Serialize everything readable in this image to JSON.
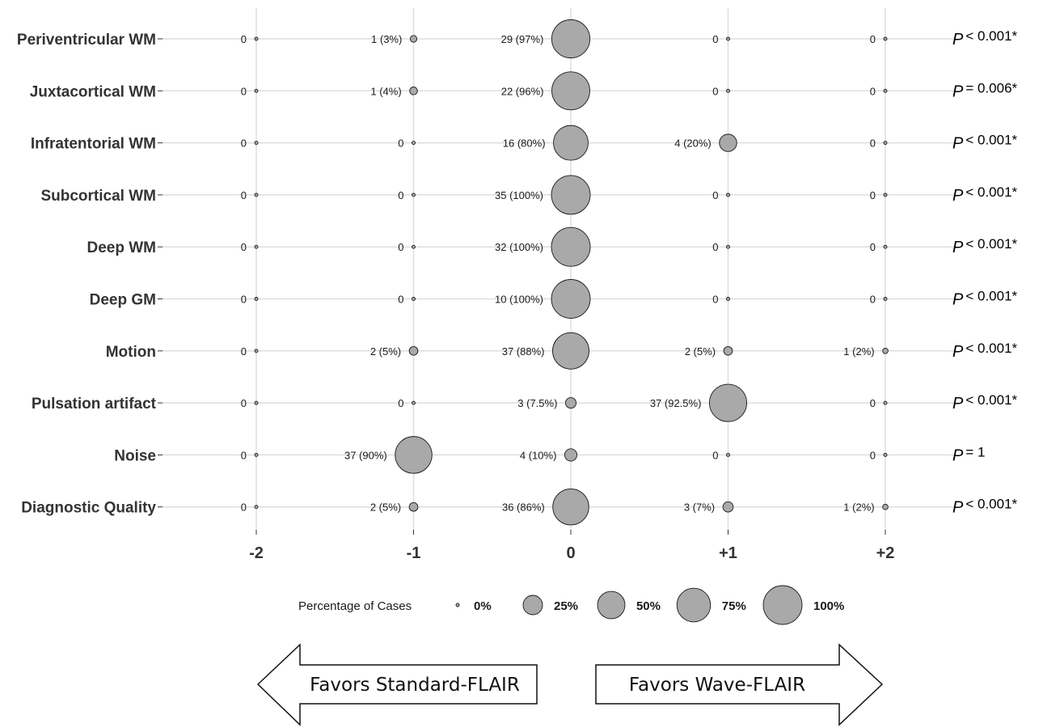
{
  "chart_data": {
    "type": "scatter",
    "x_ticks": [
      "-2",
      "-1",
      "0",
      "+1",
      "+2"
    ],
    "categories": [
      "Periventricular WM",
      "Juxtacortical WM",
      "Infratentorial WM",
      "Subcortical WM",
      "Deep WM",
      "Deep GM",
      "Motion",
      "Pulsation artifact",
      "Noise",
      "Diagnostic Quality"
    ],
    "rows": [
      {
        "label": "Periventricular WM",
        "p_value": "< 0.001*",
        "cells": [
          {
            "score": -2,
            "percent": 0,
            "text": "0"
          },
          {
            "score": -1,
            "percent": 3,
            "text": "1 (3%)"
          },
          {
            "score": 0,
            "percent": 97,
            "text": "29 (97%)"
          },
          {
            "score": 1,
            "percent": 0,
            "text": "0"
          },
          {
            "score": 2,
            "percent": 0,
            "text": "0"
          }
        ]
      },
      {
        "label": "Juxtacortical WM",
        "p_value": "= 0.006*",
        "cells": [
          {
            "score": -2,
            "percent": 0,
            "text": "0"
          },
          {
            "score": -1,
            "percent": 4,
            "text": "1 (4%)"
          },
          {
            "score": 0,
            "percent": 96,
            "text": "22 (96%)"
          },
          {
            "score": 1,
            "percent": 0,
            "text": "0"
          },
          {
            "score": 2,
            "percent": 0,
            "text": "0"
          }
        ]
      },
      {
        "label": "Infratentorial WM",
        "p_value": "< 0.001*",
        "cells": [
          {
            "score": -2,
            "percent": 0,
            "text": "0"
          },
          {
            "score": -1,
            "percent": 0,
            "text": "0"
          },
          {
            "score": 0,
            "percent": 80,
            "text": "16 (80%)"
          },
          {
            "score": 1,
            "percent": 20,
            "text": "4 (20%)"
          },
          {
            "score": 2,
            "percent": 0,
            "text": "0"
          }
        ]
      },
      {
        "label": "Subcortical WM",
        "p_value": "< 0.001*",
        "cells": [
          {
            "score": -2,
            "percent": 0,
            "text": "0"
          },
          {
            "score": -1,
            "percent": 0,
            "text": "0"
          },
          {
            "score": 0,
            "percent": 100,
            "text": "35 (100%)"
          },
          {
            "score": 1,
            "percent": 0,
            "text": "0"
          },
          {
            "score": 2,
            "percent": 0,
            "text": "0"
          }
        ]
      },
      {
        "label": "Deep WM",
        "p_value": "< 0.001*",
        "cells": [
          {
            "score": -2,
            "percent": 0,
            "text": "0"
          },
          {
            "score": -1,
            "percent": 0,
            "text": "0"
          },
          {
            "score": 0,
            "percent": 100,
            "text": "32 (100%)"
          },
          {
            "score": 1,
            "percent": 0,
            "text": "0"
          },
          {
            "score": 2,
            "percent": 0,
            "text": "0"
          }
        ]
      },
      {
        "label": "Deep GM",
        "p_value": "< 0.001*",
        "cells": [
          {
            "score": -2,
            "percent": 0,
            "text": "0"
          },
          {
            "score": -1,
            "percent": 0,
            "text": "0"
          },
          {
            "score": 0,
            "percent": 100,
            "text": "10 (100%)"
          },
          {
            "score": 1,
            "percent": 0,
            "text": "0"
          },
          {
            "score": 2,
            "percent": 0,
            "text": "0"
          }
        ]
      },
      {
        "label": "Motion",
        "p_value": "< 0.001*",
        "cells": [
          {
            "score": -2,
            "percent": 0,
            "text": "0"
          },
          {
            "score": -1,
            "percent": 5,
            "text": "2 (5%)"
          },
          {
            "score": 0,
            "percent": 88,
            "text": "37 (88%)"
          },
          {
            "score": 1,
            "percent": 5,
            "text": "2 (5%)"
          },
          {
            "score": 2,
            "percent": 2,
            "text": "1 (2%)"
          }
        ]
      },
      {
        "label": "Pulsation artifact",
        "p_value": "< 0.001*",
        "cells": [
          {
            "score": -2,
            "percent": 0,
            "text": "0"
          },
          {
            "score": -1,
            "percent": 0,
            "text": "0"
          },
          {
            "score": 0,
            "percent": 7.5,
            "text": "3 (7.5%)"
          },
          {
            "score": 1,
            "percent": 92.5,
            "text": "37 (92.5%)"
          },
          {
            "score": 2,
            "percent": 0,
            "text": "0"
          }
        ]
      },
      {
        "label": "Noise",
        "p_value": "= 1",
        "cells": [
          {
            "score": -2,
            "percent": 0,
            "text": "0"
          },
          {
            "score": -1,
            "percent": 90,
            "text": "37 (90%)"
          },
          {
            "score": 0,
            "percent": 10,
            "text": "4 (10%)"
          },
          {
            "score": 1,
            "percent": 0,
            "text": "0"
          },
          {
            "score": 2,
            "percent": 0,
            "text": "0"
          }
        ]
      },
      {
        "label": "Diagnostic Quality",
        "p_value": "< 0.001*",
        "cells": [
          {
            "score": -2,
            "percent": 0,
            "text": "0"
          },
          {
            "score": -1,
            "percent": 5,
            "text": "2 (5%)"
          },
          {
            "score": 0,
            "percent": 86,
            "text": "36 (86%)"
          },
          {
            "score": 1,
            "percent": 7,
            "text": "3 (7%)"
          },
          {
            "score": 2,
            "percent": 2,
            "text": "1 (2%)"
          }
        ]
      }
    ],
    "p_label": "P",
    "legend": {
      "title": "Percentage of Cases",
      "items": [
        {
          "label": "0%",
          "percent": 0
        },
        {
          "label": "25%",
          "percent": 25
        },
        {
          "label": "50%",
          "percent": 50
        },
        {
          "label": "75%",
          "percent": 75
        },
        {
          "label": "100%",
          "percent": 100
        }
      ]
    },
    "arrows": {
      "left": "Favors Standard-FLAIR",
      "right": "Favors Wave-FLAIR"
    },
    "grid": true,
    "colors": {
      "bubble_fill": "#a9a9a9",
      "bubble_stroke": "#1a1a1a",
      "grid": "#dedede"
    }
  }
}
